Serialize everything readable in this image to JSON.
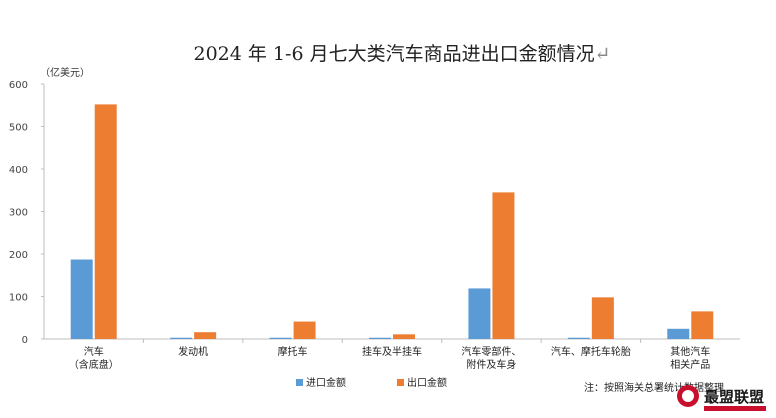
{
  "chart_data": {
    "type": "bar",
    "title": "2024 年 1-6 月七大类汽车商品进出口金额情况",
    "title_mark": "↵",
    "unit": "（亿美元）",
    "ylim": [
      0,
      600
    ],
    "yticks": [
      "0",
      "100",
      "200",
      "300",
      "400",
      "500",
      "600"
    ],
    "grid": false,
    "legend_position": "bottom-left",
    "categories": [
      [
        "汽车",
        "（含底盘）"
      ],
      [
        "发动机"
      ],
      [
        "摩托车"
      ],
      [
        "挂车及半挂车"
      ],
      [
        "汽车零部件、",
        "附件及车身"
      ],
      [
        "汽车、摩托车轮胎"
      ],
      [
        "其他汽车",
        "相关产品"
      ]
    ],
    "series": [
      {
        "name": "进口金额",
        "color": "#5b9bd5",
        "values": [
          187,
          3,
          3,
          3,
          119,
          3,
          24
        ]
      },
      {
        "name": "出口金额",
        "color": "#ed7d31",
        "values": [
          552,
          16,
          41,
          11,
          345,
          98,
          65
        ]
      }
    ]
  },
  "footnote": "注：按照海关总署统计数据整理",
  "watermark": {
    "text": "最盟联盟",
    "brand_color": "#c8102e"
  }
}
